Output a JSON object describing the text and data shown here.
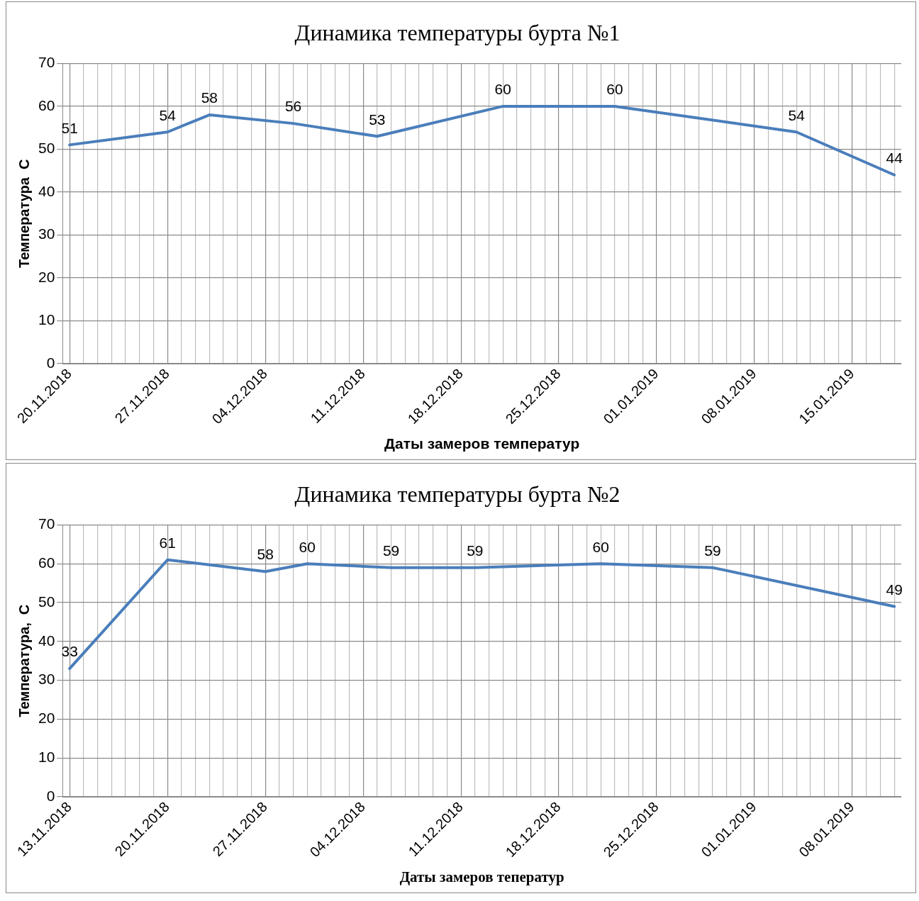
{
  "chart_data": [
    {
      "type": "line",
      "title": "Динамика температуры бурта №1",
      "xlabel": "Даты замеров температур",
      "ylabel": "Температура  С",
      "x": [
        "2018-11-20",
        "2018-11-27",
        "2018-11-30",
        "2018-12-06",
        "2018-12-12",
        "2018-12-21",
        "2018-12-29",
        "2019-01-11",
        "2019-01-18"
      ],
      "series": [
        {
          "color": "#4a7ebb",
          "values": [
            51,
            54,
            58,
            56,
            53,
            60,
            60,
            54,
            44
          ]
        }
      ],
      "xlim": [
        "2018-11-19T12:00",
        "2019-01-18T12:00"
      ],
      "xticks": [
        {
          "value": "2018-11-20",
          "label": "20.11.2018"
        },
        {
          "value": "2018-11-21",
          "label": null
        },
        {
          "value": "2018-11-22",
          "label": null
        },
        {
          "value": "2018-11-23",
          "label": null
        },
        {
          "value": "2018-11-24",
          "label": null
        },
        {
          "value": "2018-11-25",
          "label": null
        },
        {
          "value": "2018-11-26",
          "label": null
        },
        {
          "value": "2018-11-27",
          "label": "27.11.2018"
        },
        {
          "value": "2018-11-28",
          "label": null
        },
        {
          "value": "2018-11-29",
          "label": null
        },
        {
          "value": "2018-11-30",
          "label": null
        },
        {
          "value": "2018-12-01",
          "label": null
        },
        {
          "value": "2018-12-02",
          "label": null
        },
        {
          "value": "2018-12-03",
          "label": null
        },
        {
          "value": "2018-12-04",
          "label": "04.12.2018"
        },
        {
          "value": "2018-12-05",
          "label": null
        },
        {
          "value": "2018-12-06",
          "label": null
        },
        {
          "value": "2018-12-07",
          "label": null
        },
        {
          "value": "2018-12-08",
          "label": null
        },
        {
          "value": "2018-12-09",
          "label": null
        },
        {
          "value": "2018-12-10",
          "label": null
        },
        {
          "value": "2018-12-11",
          "label": "11.12.2018"
        },
        {
          "value": "2018-12-12",
          "label": null
        },
        {
          "value": "2018-12-13",
          "label": null
        },
        {
          "value": "2018-12-14",
          "label": null
        },
        {
          "value": "2018-12-15",
          "label": null
        },
        {
          "value": "2018-12-16",
          "label": null
        },
        {
          "value": "2018-12-17",
          "label": null
        },
        {
          "value": "2018-12-18",
          "label": "18.12.2018"
        },
        {
          "value": "2018-12-19",
          "label": null
        },
        {
          "value": "2018-12-20",
          "label": null
        },
        {
          "value": "2018-12-21",
          "label": null
        },
        {
          "value": "2018-12-22",
          "label": null
        },
        {
          "value": "2018-12-23",
          "label": null
        },
        {
          "value": "2018-12-24",
          "label": null
        },
        {
          "value": "2018-12-25",
          "label": "25.12.2018"
        },
        {
          "value": "2018-12-26",
          "label": null
        },
        {
          "value": "2018-12-27",
          "label": null
        },
        {
          "value": "2018-12-28",
          "label": null
        },
        {
          "value": "2018-12-29",
          "label": null
        },
        {
          "value": "2018-12-30",
          "label": null
        },
        {
          "value": "2018-12-31",
          "label": null
        },
        {
          "value": "2019-01-01",
          "label": "01.01.2019"
        },
        {
          "value": "2019-01-02",
          "label": null
        },
        {
          "value": "2019-01-03",
          "label": null
        },
        {
          "value": "2019-01-04",
          "label": null
        },
        {
          "value": "2019-01-05",
          "label": null
        },
        {
          "value": "2019-01-06",
          "label": null
        },
        {
          "value": "2019-01-07",
          "label": null
        },
        {
          "value": "2019-01-08",
          "label": "08.01.2019"
        },
        {
          "value": "2019-01-09",
          "label": null
        },
        {
          "value": "2019-01-10",
          "label": null
        },
        {
          "value": "2019-01-11",
          "label": null
        },
        {
          "value": "2019-01-12",
          "label": null
        },
        {
          "value": "2019-01-13",
          "label": null
        },
        {
          "value": "2019-01-14",
          "label": null
        },
        {
          "value": "2019-01-15",
          "label": "15.01.2019"
        },
        {
          "value": "2019-01-16",
          "label": null
        },
        {
          "value": "2019-01-17",
          "label": null
        },
        {
          "value": "2019-01-18",
          "label": null
        }
      ],
      "ylim": [
        0,
        70
      ],
      "yticks": [
        0,
        10,
        20,
        30,
        40,
        50,
        60,
        70
      ],
      "grid": true,
      "marker": "none",
      "data_labels": true
    },
    {
      "type": "line",
      "title": "Динамика температуры бурта №2",
      "xlabel": "Даты замеров теператур",
      "ylabel": "Температура,  С",
      "x": [
        "2018-11-13",
        "2018-11-20",
        "2018-11-27",
        "2018-11-30",
        "2018-12-06",
        "2018-12-12",
        "2018-12-21",
        "2018-12-29",
        "2019-01-11"
      ],
      "series": [
        {
          "color": "#4a7ebb",
          "values": [
            33,
            61,
            58,
            60,
            59,
            59,
            60,
            59,
            49
          ]
        }
      ],
      "xlim": [
        "2018-11-12T12:00",
        "2019-01-11T12:00"
      ],
      "xticks": [
        {
          "value": "2018-11-13",
          "label": "13.11.2018"
        },
        {
          "value": "2018-11-14",
          "label": null
        },
        {
          "value": "2018-11-15",
          "label": null
        },
        {
          "value": "2018-11-16",
          "label": null
        },
        {
          "value": "2018-11-17",
          "label": null
        },
        {
          "value": "2018-11-18",
          "label": null
        },
        {
          "value": "2018-11-19",
          "label": null
        },
        {
          "value": "2018-11-20",
          "label": "20.11.2018"
        },
        {
          "value": "2018-11-21",
          "label": null
        },
        {
          "value": "2018-11-22",
          "label": null
        },
        {
          "value": "2018-11-23",
          "label": null
        },
        {
          "value": "2018-11-24",
          "label": null
        },
        {
          "value": "2018-11-25",
          "label": null
        },
        {
          "value": "2018-11-26",
          "label": null
        },
        {
          "value": "2018-11-27",
          "label": "27.11.2018"
        },
        {
          "value": "2018-11-28",
          "label": null
        },
        {
          "value": "2018-11-29",
          "label": null
        },
        {
          "value": "2018-11-30",
          "label": null
        },
        {
          "value": "2018-12-01",
          "label": null
        },
        {
          "value": "2018-12-02",
          "label": null
        },
        {
          "value": "2018-12-03",
          "label": null
        },
        {
          "value": "2018-12-04",
          "label": "04.12.2018"
        },
        {
          "value": "2018-12-05",
          "label": null
        },
        {
          "value": "2018-12-06",
          "label": null
        },
        {
          "value": "2018-12-07",
          "label": null
        },
        {
          "value": "2018-12-08",
          "label": null
        },
        {
          "value": "2018-12-09",
          "label": null
        },
        {
          "value": "2018-12-10",
          "label": null
        },
        {
          "value": "2018-12-11",
          "label": "11.12.2018"
        },
        {
          "value": "2018-12-12",
          "label": null
        },
        {
          "value": "2018-12-13",
          "label": null
        },
        {
          "value": "2018-12-14",
          "label": null
        },
        {
          "value": "2018-12-15",
          "label": null
        },
        {
          "value": "2018-12-16",
          "label": null
        },
        {
          "value": "2018-12-17",
          "label": null
        },
        {
          "value": "2018-12-18",
          "label": "18.12.2018"
        },
        {
          "value": "2018-12-19",
          "label": null
        },
        {
          "value": "2018-12-20",
          "label": null
        },
        {
          "value": "2018-12-21",
          "label": null
        },
        {
          "value": "2018-12-22",
          "label": null
        },
        {
          "value": "2018-12-23",
          "label": null
        },
        {
          "value": "2018-12-24",
          "label": null
        },
        {
          "value": "2018-12-25",
          "label": "25.12.2018"
        },
        {
          "value": "2018-12-26",
          "label": null
        },
        {
          "value": "2018-12-27",
          "label": null
        },
        {
          "value": "2018-12-28",
          "label": null
        },
        {
          "value": "2018-12-29",
          "label": null
        },
        {
          "value": "2018-12-30",
          "label": null
        },
        {
          "value": "2018-12-31",
          "label": null
        },
        {
          "value": "2019-01-01",
          "label": "01.01.2019"
        },
        {
          "value": "2019-01-02",
          "label": null
        },
        {
          "value": "2019-01-03",
          "label": null
        },
        {
          "value": "2019-01-04",
          "label": null
        },
        {
          "value": "2019-01-05",
          "label": null
        },
        {
          "value": "2019-01-06",
          "label": null
        },
        {
          "value": "2019-01-07",
          "label": null
        },
        {
          "value": "2019-01-08",
          "label": "08.01.2019"
        },
        {
          "value": "2019-01-09",
          "label": null
        },
        {
          "value": "2019-01-10",
          "label": null
        },
        {
          "value": "2019-01-11",
          "label": null
        }
      ],
      "ylim": [
        0,
        70
      ],
      "yticks": [
        0,
        10,
        20,
        30,
        40,
        50,
        60,
        70
      ],
      "grid": true,
      "marker": "none",
      "data_labels": true
    }
  ]
}
